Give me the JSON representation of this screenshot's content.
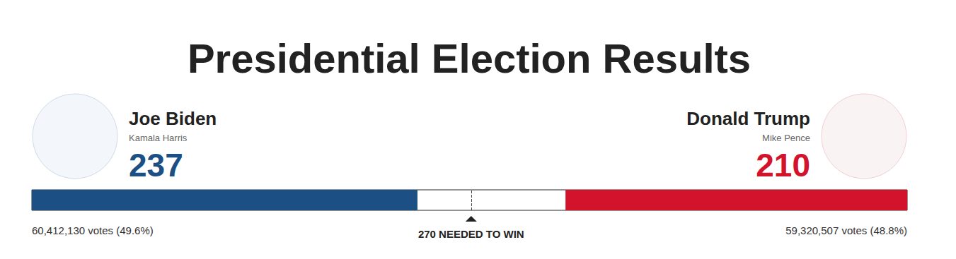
{
  "chart_data": {
    "type": "bar",
    "title": "Presidential Election Results",
    "orientation": "horizontal",
    "stacked": true,
    "grid": false,
    "tick_labels": false,
    "xlim": [
      0,
      538
    ],
    "series": [
      {
        "name": "Joe Biden",
        "running_mate": "Kamala Harris",
        "color": "#1c4f83",
        "values": [
          237
        ],
        "votes_label": "60,412,130 votes (49.6%)"
      },
      {
        "name": "Donald Trump",
        "running_mate": "Mike Pence",
        "color": "#d2132b",
        "values": [
          210
        ],
        "votes_label": "59,320,507 votes (48.8%)"
      }
    ],
    "threshold": {
      "value": 270,
      "label": "270 NEEDED TO WIN"
    }
  }
}
